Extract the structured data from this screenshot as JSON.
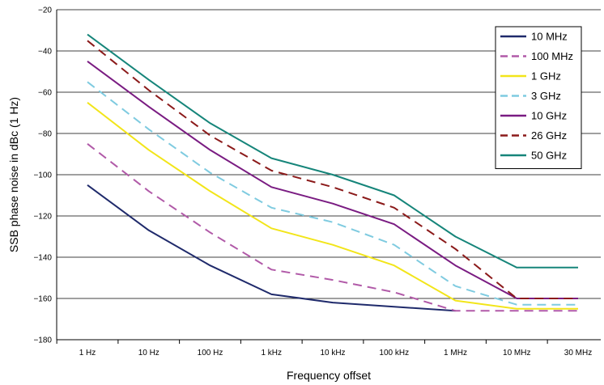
{
  "chart_data": {
    "type": "line",
    "xlabel": "Frequency offset",
    "ylabel": "SSB phase noise in dBc (1 Hz)",
    "x_categories": [
      "1 Hz",
      "10 Hz",
      "100 Hz",
      "1 kHz",
      "10 kHz",
      "100 kHz",
      "1 MHz",
      "10 MHz",
      "30 MHz"
    ],
    "y_ticks": [
      "−20",
      "−40",
      "−60",
      "−80",
      "−100",
      "−120",
      "−140",
      "−160",
      "−180"
    ],
    "ylim": [
      -180,
      -20
    ],
    "grid": "horizontal",
    "legend_position": "top-right",
    "series": [
      {
        "name": "10 MHz",
        "color": "#1f2a6b",
        "dash": "solid",
        "values": [
          -105,
          -127,
          -144,
          -158,
          -162,
          -164,
          -166,
          null,
          null
        ]
      },
      {
        "name": "100 MHz",
        "color": "#b15aa8",
        "dash": "dashed",
        "values": [
          -85,
          -108,
          -128,
          -146,
          -151,
          -157,
          -166,
          -166,
          -166
        ]
      },
      {
        "name": "1 GHz",
        "color": "#f2e51a",
        "dash": "solid",
        "values": [
          -65,
          -88,
          -108,
          -126,
          -134,
          -144,
          -161,
          -165,
          -165
        ]
      },
      {
        "name": "3 GHz",
        "color": "#7fcbe0",
        "dash": "dashed",
        "values": [
          -55,
          -78,
          -99,
          -116,
          -123,
          -134,
          -154,
          -163,
          -163
        ]
      },
      {
        "name": "10 GHz",
        "color": "#7a1c82",
        "dash": "solid",
        "values": [
          -45,
          -67,
          -88,
          -106,
          -114,
          -124,
          -144,
          -160,
          -160
        ]
      },
      {
        "name": "26 GHz",
        "color": "#8b1a1a",
        "dash": "dashed",
        "values": [
          -35,
          -59,
          -81,
          -98,
          -106,
          -116,
          -136,
          -160,
          -160
        ]
      },
      {
        "name": "50 GHz",
        "color": "#16857a",
        "dash": "solid",
        "values": [
          -32,
          -54,
          -75,
          -92,
          -100,
          -110,
          -130,
          -145,
          -145
        ]
      }
    ]
  }
}
